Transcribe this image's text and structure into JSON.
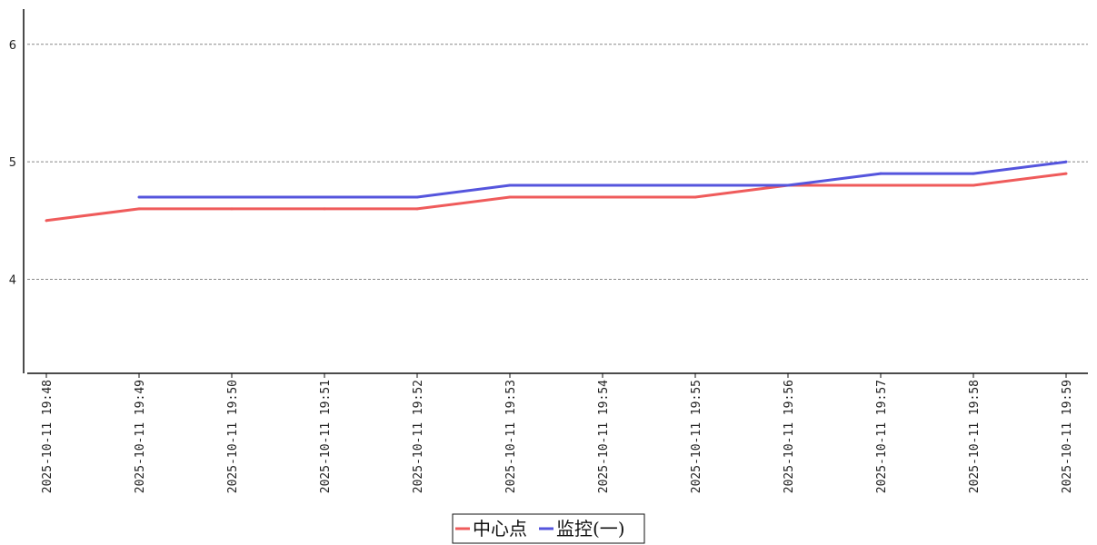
{
  "chart_data": {
    "type": "line",
    "x": [
      "2025-10-11 19:48",
      "2025-10-11 19:49",
      "2025-10-11 19:50",
      "2025-10-11 19:51",
      "2025-10-11 19:52",
      "2025-10-11 19:53",
      "2025-10-11 19:54",
      "2025-10-11 19:55",
      "2025-10-11 19:56",
      "2025-10-11 19:57",
      "2025-10-11 19:58",
      "2025-10-11 19:59"
    ],
    "ylim": [
      3.2,
      6.3
    ],
    "yticks": [
      "4",
      "5",
      "6"
    ],
    "grid": "horizontal-dashed",
    "legend": "bottom-center",
    "series": [
      {
        "name": "中心点",
        "color": "#ef5b5b",
        "values": [
          4.5,
          4.6,
          4.6,
          4.6,
          4.6,
          4.7,
          4.7,
          4.7,
          4.8,
          4.8,
          4.8,
          4.9
        ]
      },
      {
        "name": "监控(一)",
        "color": "#5555dd",
        "values": [
          null,
          4.7,
          4.7,
          4.7,
          4.7,
          4.8,
          4.8,
          4.8,
          4.8,
          4.9,
          4.9,
          5.0
        ]
      }
    ]
  }
}
